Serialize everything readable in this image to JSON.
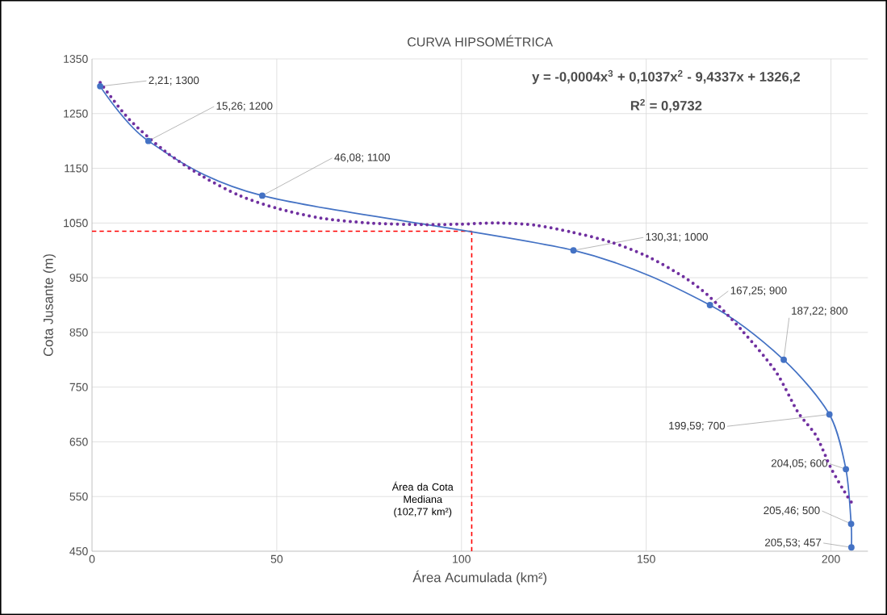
{
  "chart_data": {
    "type": "line",
    "title": "CURVA HIPSOMÉTRICA",
    "xlabel": "Área Acumulada (km²)",
    "ylabel": "Cota Jusante (m)",
    "xlim": [
      0,
      210
    ],
    "xticks": [
      0,
      50,
      100,
      150,
      200
    ],
    "ylim": [
      450,
      1350
    ],
    "yticks": [
      450,
      550,
      650,
      750,
      850,
      950,
      1050,
      1150,
      1250,
      1350
    ],
    "grid": true,
    "series": [
      {
        "color": "#4472c4",
        "marker": "circle",
        "line_style": "solid",
        "x": [
          2.21,
          15.26,
          46.08,
          130.31,
          167.25,
          187.22,
          199.59,
          204.05,
          205.46,
          205.53
        ],
        "values": [
          1300,
          1200,
          1100,
          1000,
          900,
          800,
          700,
          600,
          500,
          457
        ],
        "value_labels": [
          "2,21; 1300",
          "15,26; 1200",
          "46,08; 1100",
          "130,31; 1000",
          "167,25; 900",
          "187,22; 800",
          "199,59; 700",
          "204,05; 600",
          "205,46; 500",
          "205,53; 457"
        ]
      },
      {
        "type": "line",
        "color": "#7030a0",
        "marker": "none",
        "line_style": "dotted",
        "x": [
          2.21,
          10,
          20,
          30,
          40,
          50,
          62,
          75,
          90,
          100,
          110,
          120,
          130,
          140,
          150,
          160,
          167,
          176,
          185,
          191,
          196,
          200,
          204,
          205.5
        ],
        "values": [
          1307,
          1240,
          1180,
          1135,
          1100,
          1077,
          1059,
          1050,
          1047,
          1048,
          1050,
          1046,
          1033,
          1016,
          990,
          952,
          916,
          853,
          779,
          705,
          661,
          602,
          555,
          540
        ]
      }
    ],
    "ref_lines": [
      {
        "axis": "x",
        "value": 102.77,
        "label": "Área da Cota Mediana (102,77 km²)",
        "color": "#ff0000",
        "line_style": "dashed"
      },
      {
        "axis": "y",
        "value": 1035,
        "color": "#ff0000",
        "line_style": "dashed"
      }
    ],
    "annotations": [
      "y = -0,0004x$^{3}$ + 0,1037x$^{2}$ - 9,4337x + 1326,2",
      "R$^{2}$ = 0,9732"
    ]
  }
}
